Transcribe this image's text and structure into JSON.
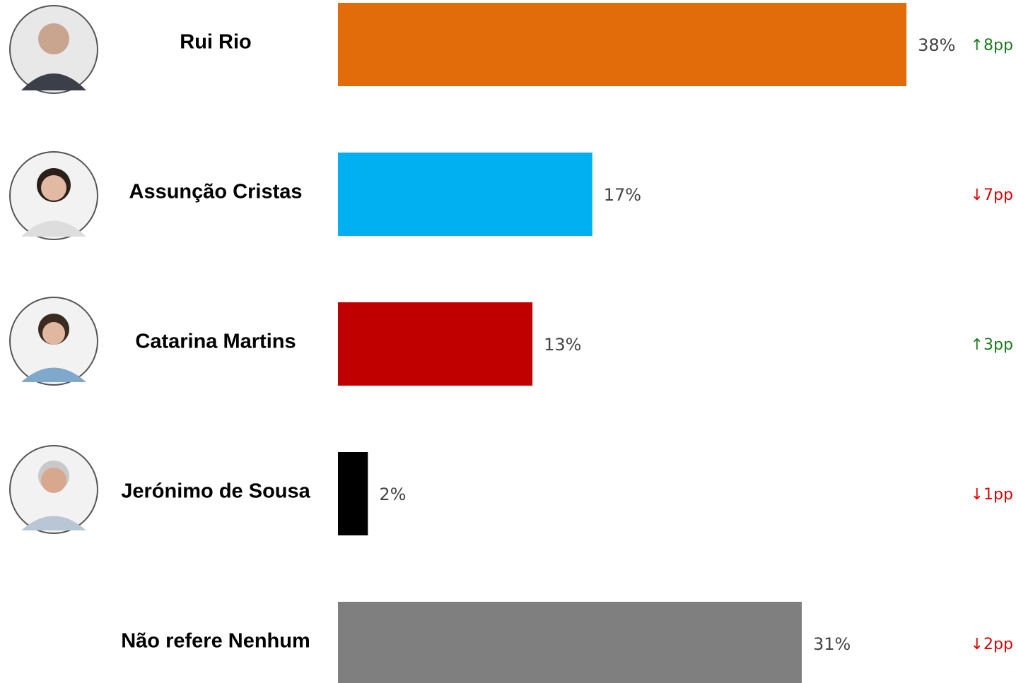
{
  "chart_data": {
    "type": "bar",
    "orientation": "horizontal",
    "categories": [
      "Rui Rio",
      "Assunção Cristas",
      "Catarina Martins",
      "Jerónimo de Sousa",
      "Não refere Nenhum"
    ],
    "values": [
      38,
      17,
      13,
      2,
      31
    ],
    "value_labels": [
      "38%",
      "17%",
      "13%",
      "2%",
      "31%"
    ],
    "colors": [
      "#e36c0a",
      "#00b0f0",
      "#c00000",
      "#000000",
      "#7f7f7f"
    ],
    "changes": [
      "↑8pp",
      "↓7pp",
      "↑3pp",
      "↓1pp",
      "↓2pp"
    ],
    "change_colors": [
      "#1e7b1e",
      "#e00000",
      "#1e7b1e",
      "#e00000",
      "#e00000"
    ]
  }
}
